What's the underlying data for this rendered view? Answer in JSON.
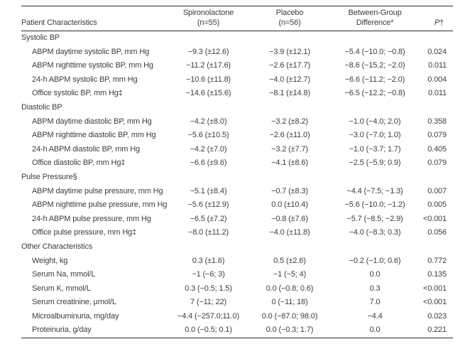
{
  "colors": {
    "ink": "#3d3d41",
    "rule": "#2a2a2a",
    "background": "#ffffff"
  },
  "table": {
    "header": {
      "col1": "Patient Characteristics",
      "col2": {
        "line1": "Spironolactone",
        "line2": "(n=55)"
      },
      "col3": {
        "line1": "Placebo",
        "line2": "(n=56)"
      },
      "col4": {
        "line1": "Between-Group",
        "line2": "Difference*"
      },
      "col5": {
        "symbol": "P",
        "dagger": "†"
      }
    },
    "sections": [
      {
        "label": "Systolic BP",
        "rows": [
          [
            "ABPM daytime systolic BP, mm Hg",
            "−9.3 (±12.6)",
            "−3.9 (±12.1)",
            "−5.4 (−10.0; −0.8)",
            "0.024"
          ],
          [
            "ABPM nighttime systolic BP, mm Hg",
            "−11.2 (±17.6)",
            "−2.6 (±17.7)",
            "−8.6 (−15.2; −2.0)",
            "0.011"
          ],
          [
            "24-h ABPM systolic BP, mm Hg",
            "−10.6 (±11.8)",
            "−4.0 (±12.7)",
            "−6.6 (−11.2; −2.0)",
            "0.004"
          ],
          [
            "Office systolic BP, mm Hg‡",
            "−14.6 (±15.6)",
            "−8.1 (±14.8)",
            "−6.5 (−12.2; −0.8)",
            "0.011"
          ]
        ]
      },
      {
        "label": "Diastolic BP",
        "rows": [
          [
            "ABPM daytime diastolic BP, mm Hg",
            "−4.2 (±8.0)",
            "−3.2 (±8.2)",
            "−1.0 (−4.0; 2.0)",
            "0.358"
          ],
          [
            "ABPM nighttime diastolic BP, mm Hg",
            "−5.6 (±10.5)",
            "−2.6 (±11.0)",
            "−3.0 (−7.0; 1.0)",
            "0.079"
          ],
          [
            "24-h ABPM diastolic BP, mm Hg",
            "−4.2 (±7.0)",
            "−3.2 (±7.7)",
            "−1.0 (−3.7; 1.7)",
            "0.405"
          ],
          [
            "Office diastolic BP, mm Hg‡",
            "−6.6 (±9.6)",
            "−4.1 (±8.6)",
            "−2.5 (−5.9; 0.9)",
            "0.079"
          ]
        ]
      },
      {
        "label": "Pulse Pressure§",
        "rows": [
          [
            "ABPM daytime pulse pressure, mm Hg",
            "−5.1 (±8.4)",
            "−0.7 (±8.3)",
            "−4.4 (−7.5; −1.3)",
            "0.007"
          ],
          [
            "ABPM nighttime pulse pressure, mm Hg",
            "−5.6 (±12.9)",
            "0.0 (±10.4)",
            "−5.6 (−10.0; −1.2)",
            "0.005"
          ],
          [
            "24-h ABPM pulse pressure, mm Hg",
            "−6.5 (±7.2)",
            "−0.8 (±7.6)",
            "−5.7 (−8.5; −2.9)",
            "<0.001"
          ],
          [
            "Office pulse pressure, mm Hg‡",
            "−8.0 (±11.2)",
            "−4.0 (±11.8)",
            "−4.0 (−8.3; 0.3)",
            "0.056"
          ]
        ]
      },
      {
        "label": "Other Characteristics",
        "rows": [
          [
            "Weight, kg",
            "0.3 (±1.6)",
            "0.5 (±2.6)",
            "−0.2 (−1.0; 0.6)",
            "0.772"
          ],
          [
            "Serum Na, mmol/L",
            "−1 (−6; 3)",
            "−1 (−5; 4)",
            "0.0",
            "0.135"
          ],
          [
            "Serum K, mmol/L",
            "0.3 (−0.5; 1.5)",
            "0.0 (−0.8; 0.6)",
            "0.3",
            "<0.001"
          ],
          [
            "Serum creatinine, μmol/L",
            "7 (−11; 22)",
            "0 (−11; 18)",
            "7.0",
            "<0.001"
          ],
          [
            "Microalbuminuria, mg/day",
            "−4.4 (−257.0;11.0)",
            "0.0 (−87.0; 98.0)",
            "−4.4",
            "0.023"
          ],
          [
            "Proteinuria, g/day",
            "0.0 (−0.5; 0.1)",
            "0.0 (−0.3; 1.7)",
            "0.0",
            "0.221"
          ]
        ]
      }
    ]
  }
}
